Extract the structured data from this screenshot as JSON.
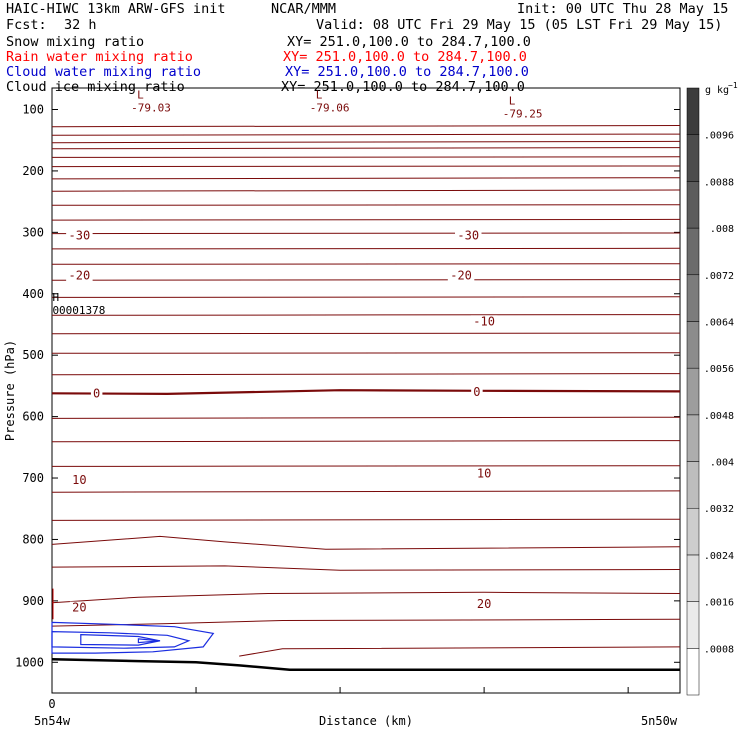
{
  "header": {
    "title": "HAIC-HIWC 13km ARW-GFS init",
    "org": "NCAR/MMM",
    "init": "Init: 00 UTC Thu 28 May 15",
    "fcst_label": "Fcst:",
    "fcst_value": "32 h",
    "valid": "Valid: 08 UTC Fri 29 May 15 (05 LST Fri 29 May 15)"
  },
  "fields": [
    {
      "label": "Snow mixing ratio",
      "xy": "XY= 251.0,100.0 to 284.7,100.0",
      "color": "#000000"
    },
    {
      "label": "Rain water mixing ratio",
      "xy": "XY= 251.0,100.0 to 284.7,100.0",
      "color": "#ff0000"
    },
    {
      "label": "Cloud water mixing ratio",
      "xy": "XY= 251.0,100.0 to 284.7,100.0",
      "color": "#0000cc"
    },
    {
      "label": "Cloud ice mixing ratio",
      "xy": "XY= 251.0,100.0 to 284.7,100.0",
      "color": "#000000"
    }
  ],
  "chart_data": {
    "type": "contour",
    "ylabel": "Pressure (hPa)",
    "xlabel": "Distance (km)",
    "y_range_hpa": [
      65,
      1050
    ],
    "y_ticks": [
      100,
      200,
      300,
      400,
      500,
      600,
      700,
      800,
      900,
      1000
    ],
    "x_range_km": [
      0,
      436
    ],
    "x_ticks": [
      0,
      100,
      200,
      300,
      400
    ],
    "x_tick_labels": [
      "0",
      "",
      "",
      "",
      ""
    ],
    "x_end_labels": [
      "5n54w",
      "5n50w"
    ],
    "colorbar": {
      "unit": "g kg",
      "unit_exp": "−1",
      "levels": [
        ".0008",
        ".0016",
        ".0024",
        ".0032",
        ".004",
        ".0048",
        ".0056",
        ".0064",
        ".0072",
        ".008",
        ".0088",
        ".0096"
      ],
      "colors": [
        "#ffffff",
        "#ebebeb",
        "#dcdcdc",
        "#cdcdcd",
        "#bdbdbd",
        "#adadad",
        "#9d9d9d",
        "#8c8c8c",
        "#7c7c7c",
        "#6c6c6c",
        "#5c5c5c",
        "#4c4c4c",
        "#3c3c3c"
      ]
    },
    "temperature_color": "#7a0a0a",
    "temperature_contours": [
      {
        "points": [
          [
            0,
            128
          ],
          [
            436,
            126
          ]
        ]
      },
      {
        "points": [
          [
            0,
            142
          ],
          [
            436,
            140
          ]
        ]
      },
      {
        "points": [
          [
            0,
            154
          ],
          [
            436,
            152
          ]
        ]
      },
      {
        "points": [
          [
            0,
            164
          ],
          [
            436,
            162
          ]
        ]
      },
      {
        "points": [
          [
            0,
            178
          ],
          [
            436,
            177
          ]
        ]
      },
      {
        "points": [
          [
            0,
            193
          ],
          [
            436,
            192
          ]
        ]
      },
      {
        "points": [
          [
            0,
            213
          ],
          [
            436,
            211
          ]
        ]
      },
      {
        "points": [
          [
            0,
            233
          ],
          [
            436,
            231
          ]
        ]
      },
      {
        "points": [
          [
            0,
            256
          ],
          [
            436,
            255
          ]
        ]
      },
      {
        "points": [
          [
            0,
            280
          ],
          [
            436,
            279
          ]
        ]
      },
      {
        "points": [
          [
            0,
            302
          ],
          [
            436,
            301
          ]
        ]
      },
      {
        "points": [
          [
            0,
            327
          ],
          [
            436,
            326
          ]
        ]
      },
      {
        "points": [
          [
            0,
            352
          ],
          [
            436,
            351
          ]
        ]
      },
      {
        "points": [
          [
            0,
            378
          ],
          [
            436,
            377
          ]
        ]
      },
      {
        "points": [
          [
            0,
            406
          ],
          [
            436,
            405
          ]
        ]
      },
      {
        "points": [
          [
            0,
            435
          ],
          [
            436,
            434
          ]
        ]
      },
      {
        "points": [
          [
            0,
            465
          ],
          [
            436,
            464
          ]
        ]
      },
      {
        "points": [
          [
            0,
            497
          ],
          [
            436,
            496
          ]
        ]
      },
      {
        "points": [
          [
            0,
            532
          ],
          [
            436,
            530
          ]
        ]
      },
      {
        "points": [
          [
            0,
            562
          ],
          [
            80,
            563
          ],
          [
            200,
            557
          ],
          [
            300,
            558
          ],
          [
            436,
            559
          ]
        ],
        "bold": true
      },
      {
        "points": [
          [
            0,
            603
          ],
          [
            436,
            601
          ]
        ]
      },
      {
        "points": [
          [
            0,
            641
          ],
          [
            436,
            639
          ]
        ]
      },
      {
        "points": [
          [
            0,
            681
          ],
          [
            436,
            680
          ]
        ]
      },
      {
        "points": [
          [
            0,
            723
          ],
          [
            436,
            721
          ]
        ]
      },
      {
        "points": [
          [
            0,
            769
          ],
          [
            436,
            767
          ]
        ]
      },
      {
        "points": [
          [
            0,
            808
          ],
          [
            75,
            795
          ],
          [
            120,
            804
          ],
          [
            190,
            816
          ],
          [
            436,
            812
          ]
        ]
      },
      {
        "points": [
          [
            0,
            845
          ],
          [
            120,
            843
          ],
          [
            200,
            850
          ],
          [
            436,
            849
          ]
        ]
      },
      {
        "points": [
          [
            0,
            903
          ],
          [
            60,
            894
          ],
          [
            150,
            888
          ],
          [
            300,
            886
          ],
          [
            436,
            888
          ]
        ]
      },
      {
        "points": [
          [
            0,
            941
          ],
          [
            80,
            937
          ],
          [
            160,
            932
          ],
          [
            436,
            930
          ]
        ]
      },
      {
        "points": [
          [
            130,
            990
          ],
          [
            160,
            978
          ],
          [
            436,
            975
          ]
        ]
      }
    ],
    "contour_labels": [
      {
        "text": "-30",
        "x": 19,
        "p": 305
      },
      {
        "text": "-30",
        "x": 289,
        "p": 305
      },
      {
        "text": "-20",
        "x": 19,
        "p": 370
      },
      {
        "text": "-20",
        "x": 284,
        "p": 370
      },
      {
        "text": "-10",
        "x": 300,
        "p": 445
      },
      {
        "text": "0",
        "x": 31,
        "p": 562
      },
      {
        "text": "0",
        "x": 295,
        "p": 560
      },
      {
        "text": "10",
        "x": 19,
        "p": 703
      },
      {
        "text": "10",
        "x": 300,
        "p": 693
      },
      {
        "text": "20",
        "x": 19,
        "p": 911
      },
      {
        "text": "20",
        "x": 300,
        "p": 905
      }
    ],
    "cloud_water_color": "#1a2de0",
    "cloud_water_contours": [
      {
        "points": [
          [
            0,
            935
          ],
          [
            40,
            938
          ],
          [
            85,
            942
          ],
          [
            112,
            953
          ],
          [
            105,
            975
          ],
          [
            70,
            983
          ],
          [
            30,
            985
          ],
          [
            0,
            985
          ]
        ],
        "closed": true
      },
      {
        "points": [
          [
            0,
            950
          ],
          [
            40,
            952
          ],
          [
            80,
            956
          ],
          [
            95,
            965
          ],
          [
            85,
            975
          ],
          [
            50,
            977
          ],
          [
            0,
            975
          ]
        ],
        "closed": true
      },
      {
        "points": [
          [
            20,
            955
          ],
          [
            60,
            958
          ],
          [
            75,
            965
          ],
          [
            60,
            972
          ],
          [
            20,
            971
          ]
        ],
        "closed": true
      },
      {
        "points": [
          [
            60,
            962
          ],
          [
            75,
            965
          ],
          [
            60,
            968
          ]
        ],
        "closed": true
      }
    ],
    "terrain_color": "#000000",
    "terrain": [
      [
        0,
        995
      ],
      [
        60,
        998
      ],
      [
        100,
        1000
      ],
      [
        130,
        1005
      ],
      [
        165,
        1012
      ],
      [
        260,
        1012
      ],
      [
        436,
        1012
      ]
    ],
    "lows": [
      {
        "text": "-79.03",
        "x": 73,
        "p": 98
      },
      {
        "text": "-79.06",
        "x": 197,
        "p": 98
      },
      {
        "text": "-79.25",
        "x": 331,
        "p": 108
      }
    ],
    "highs": [
      {
        "text": "00001378",
        "x": 1,
        "p": 428
      }
    ]
  }
}
